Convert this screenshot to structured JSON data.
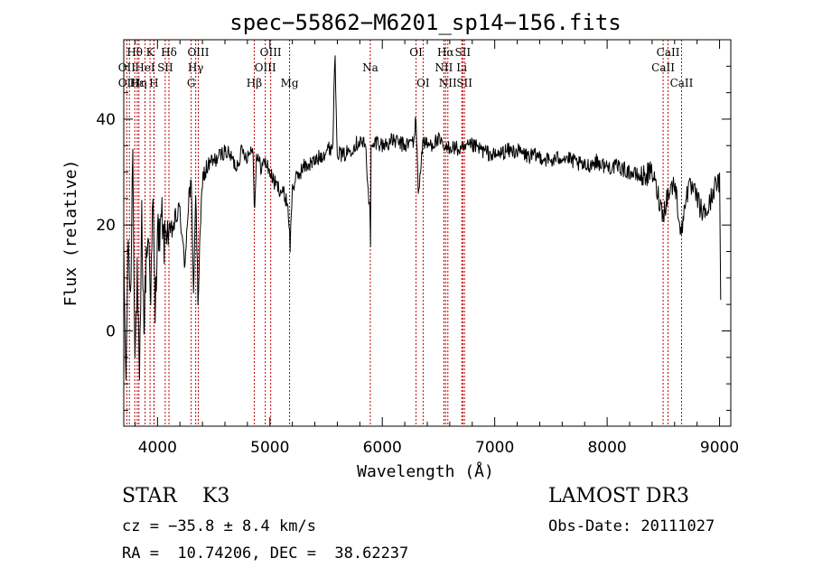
{
  "chart_data": {
    "type": "line",
    "title": "spec−55862−M6201_sp14−156.fits",
    "xlabel": "Wavelength (Å)",
    "ylabel": "Flux (relative)",
    "xlim": [
      3700,
      9100
    ],
    "ylim": [
      -18,
      55
    ],
    "xticks": [
      4000,
      5000,
      6000,
      7000,
      8000,
      9000
    ],
    "yticks": [
      0,
      20,
      40
    ],
    "grid": false,
    "series": [
      {
        "name": "spectrum",
        "x": [
          3700,
          3720,
          3740,
          3760,
          3780,
          3800,
          3820,
          3840,
          3860,
          3880,
          3900,
          3920,
          3940,
          3960,
          3980,
          4000,
          4020,
          4040,
          4060,
          4080,
          4100,
          4130,
          4160,
          4200,
          4240,
          4280,
          4300,
          4320,
          4340,
          4360,
          4400,
          4450,
          4500,
          4550,
          4600,
          4650,
          4700,
          4750,
          4800,
          4850,
          4861,
          4880,
          4920,
          4960,
          5000,
          5040,
          5080,
          5120,
          5160,
          5180,
          5200,
          5240,
          5300,
          5400,
          5500,
          5560,
          5577,
          5600,
          5650,
          5700,
          5750,
          5800,
          5850,
          5890,
          5895,
          5900,
          5950,
          6000,
          6100,
          6200,
          6280,
          6300,
          6320,
          6363,
          6400,
          6500,
          6563,
          6600,
          6700,
          6800,
          6900,
          7000,
          7100,
          7200,
          7300,
          7400,
          7500,
          7600,
          7700,
          7800,
          7900,
          8000,
          8100,
          8200,
          8300,
          8400,
          8498,
          8542,
          8600,
          8662,
          8700,
          8750,
          8800,
          8850,
          8900,
          8950,
          9000,
          9010
        ],
        "values": [
          14,
          -10,
          18,
          5,
          35,
          -5,
          10,
          -12,
          22,
          0,
          14,
          18,
          8,
          24,
          3,
          20,
          17,
          22,
          16,
          20,
          18,
          19,
          21,
          23,
          12,
          26,
          27,
          8,
          26,
          6,
          29,
          31,
          32,
          33,
          34,
          33,
          31,
          34,
          33,
          35,
          22,
          33,
          31,
          32,
          30,
          28,
          27,
          26,
          24,
          16,
          27,
          29,
          31,
          32,
          34,
          35,
          53,
          34,
          33,
          34,
          35,
          36,
          35,
          22,
          17,
          34,
          36,
          35,
          36,
          35,
          36,
          40,
          26,
          36,
          35,
          36,
          34,
          35,
          34,
          35,
          34,
          33,
          34,
          34,
          33,
          33,
          32,
          33,
          32,
          31,
          32,
          31,
          31,
          30,
          29,
          30,
          22,
          26,
          28,
          18,
          26,
          27,
          25,
          22,
          23,
          27,
          28,
          5
        ]
      }
    ],
    "line_ids": {
      "positions": [
        3727,
        3750,
        3798,
        3820,
        3835,
        3889,
        3934,
        3968,
        3970,
        4069,
        4102,
        4300,
        4340,
        4363,
        4861,
        4959,
        5007,
        5175,
        5893,
        6300,
        6363,
        6548,
        6563,
        6583,
        6707,
        6716,
        6731,
        8498,
        8542,
        8662
      ],
      "labels": [
        {
          "text": "Hθ",
          "x": 3798,
          "row": 1
        },
        {
          "text": "K",
          "x": 3934,
          "row": 1
        },
        {
          "text": "Hδ",
          "x": 4102,
          "row": 1
        },
        {
          "text": "OIII",
          "x": 4363,
          "row": 1
        },
        {
          "text": "OIII",
          "x": 5007,
          "row": 1
        },
        {
          "text": "OI",
          "x": 6300,
          "row": 1
        },
        {
          "text": "Hα",
          "x": 6563,
          "row": 1
        },
        {
          "text": "SII",
          "x": 6716,
          "row": 1
        },
        {
          "text": "CaII",
          "x": 8542,
          "row": 1
        },
        {
          "text": "OII",
          "x": 3727,
          "row": 2
        },
        {
          "text": "HeI",
          "x": 3889,
          "row": 2
        },
        {
          "text": "SII",
          "x": 4069,
          "row": 2
        },
        {
          "text": "Hγ",
          "x": 4340,
          "row": 2
        },
        {
          "text": "OIII",
          "x": 4959,
          "row": 2
        },
        {
          "text": "Na",
          "x": 5893,
          "row": 2
        },
        {
          "text": "NII",
          "x": 6548,
          "row": 2
        },
        {
          "text": "Li",
          "x": 6707,
          "row": 2
        },
        {
          "text": "CaII",
          "x": 8498,
          "row": 2
        },
        {
          "text": "OII",
          "x": 3727,
          "row": 3
        },
        {
          "text": "Hε",
          "x": 3820,
          "row": 3
        },
        {
          "text": "Hη",
          "x": 3835,
          "row": 3
        },
        {
          "text": "H",
          "x": 3968,
          "row": 3
        },
        {
          "text": "G",
          "x": 4300,
          "row": 3
        },
        {
          "text": "Hβ",
          "x": 4861,
          "row": 3
        },
        {
          "text": "Mg",
          "x": 5175,
          "row": 3
        },
        {
          "text": "OI",
          "x": 6363,
          "row": 3
        },
        {
          "text": "NII",
          "x": 6583,
          "row": 3
        },
        {
          "text": "SII",
          "x": 6731,
          "row": 3
        },
        {
          "text": "CaII",
          "x": 8662,
          "row": 3
        }
      ]
    }
  },
  "footer": {
    "classification": "STAR    K3",
    "survey": "LAMOST DR3",
    "redshift": "cz = −35.8 ± 8.4 km/s",
    "obs_date": "Obs-Date: 20111027",
    "coords": "RA =  10.74206, DEC =  38.62237"
  },
  "colors": {
    "axes": "#000000",
    "line_markers": "#c00000"
  }
}
